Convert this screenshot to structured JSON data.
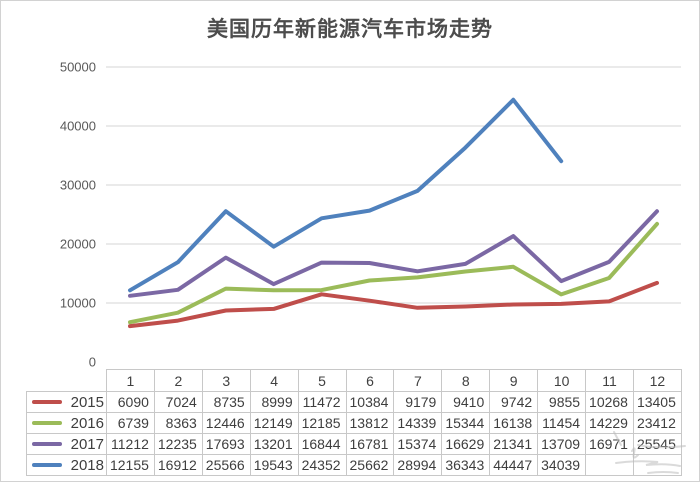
{
  "title": "美国历年新能源汽车市场走势",
  "colors": {
    "grid": "#d6d6d6",
    "axis_text": "#595959",
    "table_border": "#c8c8c8",
    "title_text": "#4c4c4c",
    "series_2015": "#bf4e4b",
    "series_2016": "#9bbb59",
    "series_2017": "#7b68a4",
    "series_2018": "#4f81bd"
  },
  "chart_data": {
    "type": "line",
    "title": "美国历年新能源汽车市场走势",
    "xlabel": "",
    "ylabel": "",
    "x": [
      "1",
      "2",
      "3",
      "4",
      "5",
      "6",
      "7",
      "8",
      "9",
      "10",
      "11",
      "12"
    ],
    "ylim": [
      0,
      50000
    ],
    "yticks": [
      0,
      10000,
      20000,
      30000,
      40000,
      50000
    ],
    "grid": true,
    "legend_position": "table-left",
    "series": [
      {
        "name": "2015",
        "color": "#bf4e4b",
        "values": [
          6090,
          7024,
          8735,
          8999,
          11472,
          10384,
          9179,
          9410,
          9742,
          9855,
          10268,
          13405
        ]
      },
      {
        "name": "2016",
        "color": "#9bbb59",
        "values": [
          6739,
          8363,
          12446,
          12149,
          12185,
          13812,
          14339,
          15344,
          16138,
          11454,
          14229,
          23412
        ]
      },
      {
        "name": "2017",
        "color": "#7b68a4",
        "values": [
          11212,
          12235,
          17693,
          13201,
          16844,
          16781,
          15374,
          16629,
          21341,
          13709,
          16971,
          25545
        ]
      },
      {
        "name": "2018",
        "color": "#4f81bd",
        "values": [
          12155,
          16912,
          25566,
          19543,
          24352,
          25662,
          28994,
          36343,
          44447,
          34039,
          null,
          null
        ]
      }
    ]
  }
}
